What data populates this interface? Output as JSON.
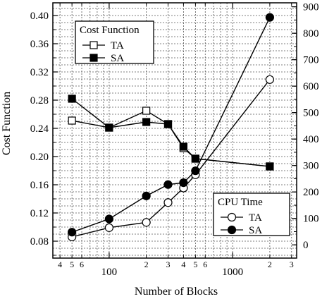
{
  "chart_data": {
    "type": "line",
    "title": "",
    "xlabel": "Number of Blocks",
    "ylabel": "Cost Function",
    "y2label": "",
    "xscale": "log",
    "xlim": [
      35,
      3300
    ],
    "ylim": [
      0.056,
      0.418
    ],
    "y2lim": [
      -50,
      915
    ],
    "grid": true,
    "x_major_ticks": [
      {
        "value": 100,
        "label": "100"
      },
      {
        "value": 1000,
        "label": "1000"
      }
    ],
    "x_minor_ticks": [
      {
        "value": 40,
        "label": "4"
      },
      {
        "value": 50,
        "label": "5"
      },
      {
        "value": 60,
        "label": "6"
      },
      {
        "value": 200,
        "label": "2"
      },
      {
        "value": 300,
        "label": "3"
      },
      {
        "value": 400,
        "label": "4"
      },
      {
        "value": 500,
        "label": "5"
      },
      {
        "value": 600,
        "label": "6"
      },
      {
        "value": 2000,
        "label": "2"
      },
      {
        "value": 3000,
        "label": "3"
      }
    ],
    "y_ticks": [
      "0.08",
      "0.12",
      "0.16",
      "0.20",
      "0.24",
      "0.28",
      "0.32",
      "0.36",
      "0.40"
    ],
    "y2_ticks": [
      "0",
      "100",
      "200",
      "300",
      "400",
      "500",
      "600",
      "700",
      "800",
      "900"
    ],
    "legends": [
      {
        "title": "Cost Function",
        "entries": [
          {
            "label": "TA",
            "marker": "open-square"
          },
          {
            "label": "SA",
            "marker": "filled-square"
          }
        ],
        "placement": "top-left"
      },
      {
        "title": "CPU Time",
        "entries": [
          {
            "label": "TA",
            "marker": "open-circle"
          },
          {
            "label": "SA",
            "marker": "filled-circle"
          }
        ],
        "placement": "bottom-right"
      }
    ],
    "series": [
      {
        "group": "Cost Function",
        "name": "TA",
        "axis": "left",
        "marker": "open-square",
        "x": [
          50,
          100,
          200,
          300,
          400,
          500,
          2000
        ],
        "y": [
          0.251,
          0.241,
          0.265,
          0.246,
          0.212,
          0.197,
          0.186
        ]
      },
      {
        "group": "Cost Function",
        "name": "SA",
        "axis": "left",
        "marker": "filled-square",
        "x": [
          50,
          100,
          200,
          300,
          400,
          500,
          2000
        ],
        "y": [
          0.282,
          0.241,
          0.249,
          0.246,
          0.214,
          0.197,
          0.186
        ]
      },
      {
        "group": "CPU Time",
        "name": "TA",
        "axis": "right",
        "marker": "open-circle",
        "x": [
          50,
          100,
          200,
          300,
          400,
          500,
          2000
        ],
        "y": [
          30,
          65,
          85,
          160,
          215,
          265,
          625
        ]
      },
      {
        "group": "CPU Time",
        "name": "SA",
        "axis": "right",
        "marker": "filled-circle",
        "x": [
          50,
          100,
          200,
          300,
          400,
          500,
          2000
        ],
        "y": [
          48,
          98,
          185,
          228,
          235,
          280,
          860
        ]
      }
    ]
  }
}
